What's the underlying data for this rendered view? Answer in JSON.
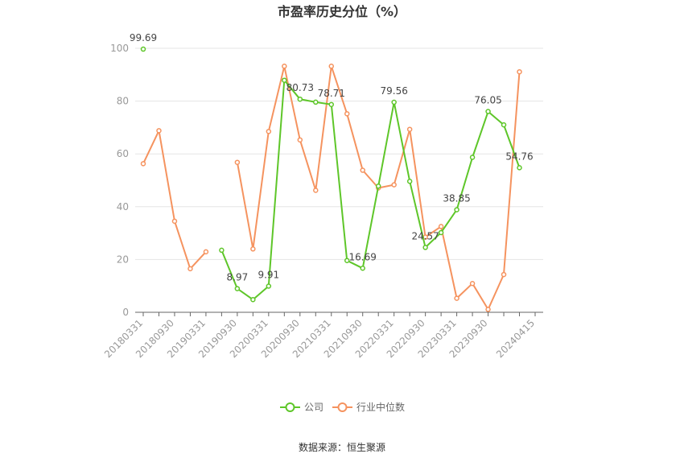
{
  "chart_data": {
    "type": "line",
    "title": "市盈率历史分位（%）",
    "xlabel": "",
    "ylabel": "",
    "ylim": [
      0,
      100
    ],
    "yticks": [
      0,
      20,
      40,
      60,
      80,
      100
    ],
    "grid": true,
    "legend_position": "bottom",
    "categories": [
      "20180331",
      "20180630",
      "20180930",
      "20181231",
      "20190331",
      "20190630",
      "20190930",
      "20191231",
      "20200331",
      "20200630",
      "20200930",
      "20201231",
      "20210331",
      "20210630",
      "20210930",
      "20211231",
      "20220331",
      "20220630",
      "20220930",
      "20221231",
      "20230331",
      "20230630",
      "20230930",
      "20231231",
      "20240331",
      "20240415"
    ],
    "visible_tick_labels": [
      "20180331",
      "20180930",
      "20190331",
      "20190930",
      "20200331",
      "20200930",
      "20210331",
      "20210930",
      "20220331",
      "20220930",
      "20230331",
      "20230930",
      "20240415"
    ],
    "series": [
      {
        "name": "公司",
        "color": "#5ec629",
        "values": [
          99.69,
          null,
          null,
          null,
          null,
          23.5,
          8.97,
          4.8,
          9.91,
          87.9,
          80.73,
          79.6,
          78.71,
          19.6,
          16.69,
          47.8,
          79.56,
          49.6,
          24.57,
          30.2,
          38.85,
          58.7,
          76.05,
          71.0,
          54.76,
          null
        ],
        "labels": [
          {
            "index": 0,
            "text": "99.69"
          },
          {
            "index": 6,
            "text": "8.97"
          },
          {
            "index": 8,
            "text": "9.91"
          },
          {
            "index": 10,
            "text": "80.73"
          },
          {
            "index": 12,
            "text": "78.71"
          },
          {
            "index": 14,
            "text": "16.69"
          },
          {
            "index": 16,
            "text": "79.56"
          },
          {
            "index": 18,
            "text": "24.57"
          },
          {
            "index": 20,
            "text": "38.85"
          },
          {
            "index": 22,
            "text": "76.05"
          },
          {
            "index": 24,
            "text": "54.76"
          }
        ]
      },
      {
        "name": "行业中位数",
        "color": "#f5935f",
        "values": [
          56.3,
          68.8,
          34.5,
          16.5,
          22.9,
          null,
          56.8,
          24.0,
          68.5,
          93.2,
          65.3,
          46.2,
          93.2,
          75.2,
          53.8,
          47.1,
          48.3,
          69.3,
          28.5,
          32.5,
          5.3,
          10.9,
          1.1,
          14.3,
          91.1,
          null
        ]
      }
    ],
    "source": "数据来源：恒生聚源"
  }
}
